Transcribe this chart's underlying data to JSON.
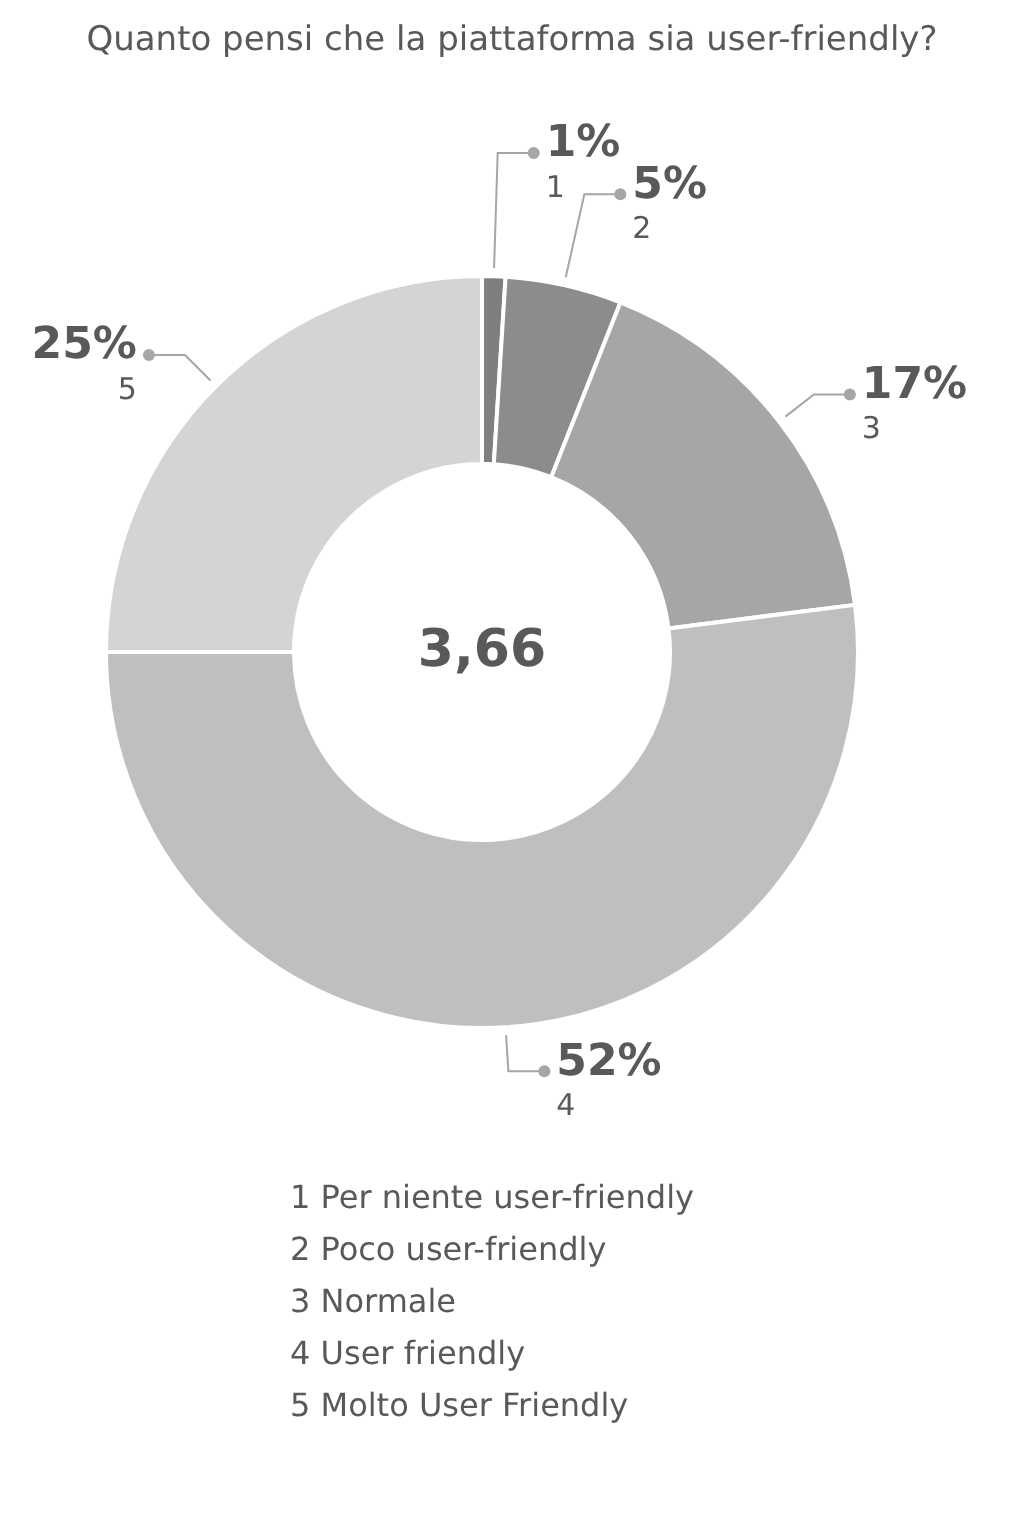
{
  "chart_data": {
    "type": "donut",
    "title": "Quanto pensi che la piattaforma sia user-friendly?",
    "categories": [
      "1",
      "2",
      "3",
      "4",
      "5"
    ],
    "values": [
      1,
      5,
      17,
      52,
      25
    ],
    "value_labels": [
      "1%",
      "5%",
      "17%",
      "52%",
      "25%"
    ],
    "colors": [
      "#7f7f7f",
      "#8c8c8c",
      "#a6a6a6",
      "#bfbfbf",
      "#d4d4d4"
    ],
    "annotations": [
      "3,66",
      "1 Per niente user-friendly",
      "2 Poco user-friendly",
      "3 Normale",
      "4 User friendly",
      "5 Molto User Friendly"
    ]
  }
}
